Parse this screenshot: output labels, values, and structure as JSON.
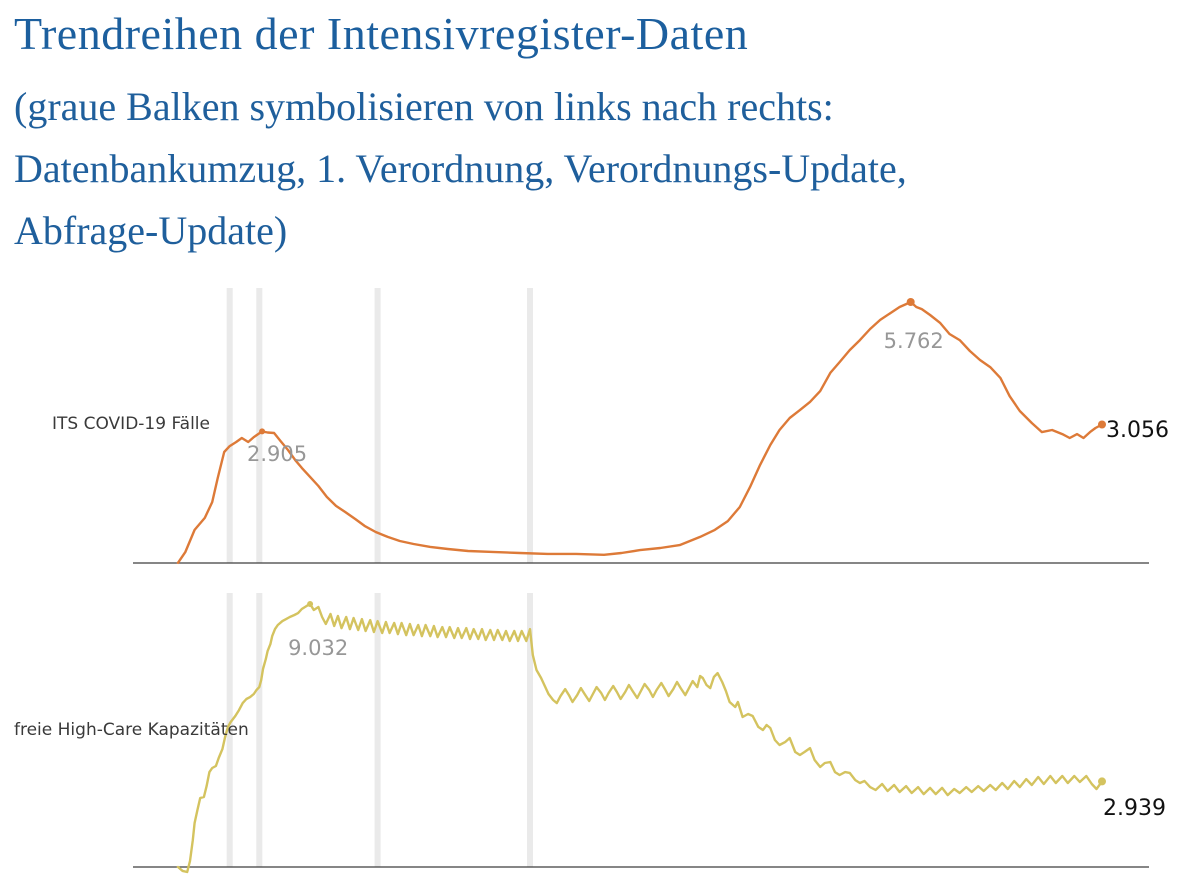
{
  "header": {
    "title": "Trendreihen der Intensivregister-Daten",
    "subtitle_lines": [
      "(graue Balken symbolisieren von links nach rechts:",
      "Datenbankumzug, 1. Verordnung, Verordnungs-Update,",
      "Abfrage-Update)"
    ]
  },
  "colors": {
    "title_blue": "#1c5f9e",
    "line_orange": "#dd7a38",
    "line_yellow": "#d4c35f",
    "event_bar_gray": "#eaeaea",
    "axis_gray": "#3f3f3f",
    "annotation_gray": "#979797",
    "end_label_dark": "#111111",
    "row_label_dark": "#3a3a3a"
  },
  "event_bars": {
    "names": [
      "Datenbankumzug",
      "1. Verordnung",
      "Verordnungs-Update",
      "Abfrage-Update"
    ],
    "t_positions": [
      0.056,
      0.088,
      0.216,
      0.381
    ]
  },
  "chart_data": [
    {
      "type": "line",
      "series_name": "ITS COVID-19 Fälle",
      "legend_position": "left-middle",
      "grid": false,
      "x_tick_labels": [],
      "ylim": [
        0,
        6070
      ],
      "annotations": [
        {
          "label": "2.905",
          "t": 0.091,
          "v": 2905
        },
        {
          "label": "5.762",
          "t": 0.793,
          "v": 5762
        }
      ],
      "end_label": "3.056",
      "end_value": 3056,
      "points": [
        [
          0,
          5
        ],
        [
          0.008,
          245
        ],
        [
          0.018,
          730
        ],
        [
          0.029,
          995
        ],
        [
          0.037,
          1345
        ],
        [
          0.043,
          1875
        ],
        [
          0.05,
          2450
        ],
        [
          0.056,
          2580
        ],
        [
          0.063,
          2670
        ],
        [
          0.069,
          2760
        ],
        [
          0.076,
          2670
        ],
        [
          0.082,
          2780
        ],
        [
          0.091,
          2905
        ],
        [
          0.097,
          2880
        ],
        [
          0.104,
          2870
        ],
        [
          0.111,
          2690
        ],
        [
          0.119,
          2495
        ],
        [
          0.127,
          2270
        ],
        [
          0.134,
          2100
        ],
        [
          0.143,
          1900
        ],
        [
          0.152,
          1700
        ],
        [
          0.161,
          1460
        ],
        [
          0.171,
          1260
        ],
        [
          0.181,
          1125
        ],
        [
          0.192,
          970
        ],
        [
          0.202,
          820
        ],
        [
          0.214,
          685
        ],
        [
          0.227,
          575
        ],
        [
          0.24,
          485
        ],
        [
          0.255,
          420
        ],
        [
          0.273,
          355
        ],
        [
          0.292,
          310
        ],
        [
          0.314,
          265
        ],
        [
          0.34,
          245
        ],
        [
          0.37,
          220
        ],
        [
          0.4,
          200
        ],
        [
          0.431,
          200
        ],
        [
          0.461,
          180
        ],
        [
          0.48,
          220
        ],
        [
          0.5,
          285
        ],
        [
          0.522,
          330
        ],
        [
          0.543,
          395
        ],
        [
          0.565,
          575
        ],
        [
          0.581,
          730
        ],
        [
          0.595,
          925
        ],
        [
          0.608,
          1235
        ],
        [
          0.619,
          1675
        ],
        [
          0.63,
          2165
        ],
        [
          0.641,
          2605
        ],
        [
          0.651,
          2935
        ],
        [
          0.662,
          3200
        ],
        [
          0.673,
          3375
        ],
        [
          0.684,
          3555
        ],
        [
          0.695,
          3795
        ],
        [
          0.706,
          4195
        ],
        [
          0.716,
          4435
        ],
        [
          0.727,
          4700
        ],
        [
          0.738,
          4920
        ],
        [
          0.749,
          5165
        ],
        [
          0.76,
          5365
        ],
        [
          0.771,
          5515
        ],
        [
          0.781,
          5650
        ],
        [
          0.788,
          5715
        ],
        [
          0.793,
          5762
        ],
        [
          0.799,
          5650
        ],
        [
          0.805,
          5605
        ],
        [
          0.814,
          5475
        ],
        [
          0.825,
          5295
        ],
        [
          0.835,
          5055
        ],
        [
          0.846,
          4920
        ],
        [
          0.857,
          4680
        ],
        [
          0.868,
          4480
        ],
        [
          0.879,
          4325
        ],
        [
          0.89,
          4085
        ],
        [
          0.9,
          3685
        ],
        [
          0.911,
          3355
        ],
        [
          0.924,
          3090
        ],
        [
          0.935,
          2890
        ],
        [
          0.946,
          2935
        ],
        [
          0.957,
          2845
        ],
        [
          0.965,
          2760
        ],
        [
          0.973,
          2845
        ],
        [
          0.98,
          2760
        ],
        [
          0.987,
          2890
        ],
        [
          0.993,
          2980
        ],
        [
          1,
          3056
        ]
      ]
    },
    {
      "type": "line",
      "series_name": "freie High-Care Kapazitäten",
      "legend_position": "left-middle",
      "grid": false,
      "x_tick_labels": [],
      "ylim": [
        0,
        9410
      ],
      "annotations": [
        {
          "label": "9.032",
          "t": 0.143,
          "v": 9032
        }
      ],
      "end_label": "2.939",
      "end_value": 2939,
      "points": [
        [
          0,
          0
        ],
        [
          0.005,
          -135
        ],
        [
          0.01,
          -170
        ],
        [
          0.013,
          205
        ],
        [
          0.016,
          925
        ],
        [
          0.018,
          1510
        ],
        [
          0.021,
          1955
        ],
        [
          0.024,
          2370
        ],
        [
          0.028,
          2405
        ],
        [
          0.031,
          2780
        ],
        [
          0.034,
          3260
        ],
        [
          0.037,
          3400
        ],
        [
          0.041,
          3470
        ],
        [
          0.044,
          3745
        ],
        [
          0.048,
          4050
        ],
        [
          0.051,
          4465
        ],
        [
          0.054,
          4810
        ],
        [
          0.057,
          4980
        ],
        [
          0.062,
          5185
        ],
        [
          0.066,
          5390
        ],
        [
          0.07,
          5630
        ],
        [
          0.074,
          5770
        ],
        [
          0.078,
          5835
        ],
        [
          0.082,
          5940
        ],
        [
          0.085,
          6080
        ],
        [
          0.088,
          6180
        ],
        [
          0.09,
          6420
        ],
        [
          0.092,
          6800
        ],
        [
          0.095,
          7140
        ],
        [
          0.097,
          7415
        ],
        [
          0.1,
          7655
        ],
        [
          0.102,
          7930
        ],
        [
          0.105,
          8170
        ],
        [
          0.108,
          8310
        ],
        [
          0.113,
          8445
        ],
        [
          0.117,
          8515
        ],
        [
          0.121,
          8585
        ],
        [
          0.126,
          8655
        ],
        [
          0.13,
          8720
        ],
        [
          0.134,
          8860
        ],
        [
          0.139,
          8960
        ],
        [
          0.143,
          9032
        ],
        [
          0.147,
          8825
        ],
        [
          0.152,
          8930
        ],
        [
          0.156,
          8585
        ],
        [
          0.16,
          8345
        ],
        [
          0.165,
          8690
        ],
        [
          0.169,
          8275
        ],
        [
          0.173,
          8620
        ],
        [
          0.177,
          8205
        ],
        [
          0.182,
          8585
        ],
        [
          0.186,
          8170
        ],
        [
          0.19,
          8550
        ],
        [
          0.195,
          8140
        ],
        [
          0.199,
          8515
        ],
        [
          0.203,
          8105
        ],
        [
          0.208,
          8480
        ],
        [
          0.212,
          8070
        ],
        [
          0.216,
          8445
        ],
        [
          0.221,
          8035
        ],
        [
          0.225,
          8415
        ],
        [
          0.229,
          8035
        ],
        [
          0.234,
          8380
        ],
        [
          0.238,
          8000
        ],
        [
          0.242,
          8380
        ],
        [
          0.247,
          7965
        ],
        [
          0.251,
          8345
        ],
        [
          0.255,
          7965
        ],
        [
          0.26,
          8310
        ],
        [
          0.264,
          7930
        ],
        [
          0.268,
          8310
        ],
        [
          0.273,
          7930
        ],
        [
          0.277,
          8275
        ],
        [
          0.281,
          7895
        ],
        [
          0.286,
          8240
        ],
        [
          0.29,
          7895
        ],
        [
          0.294,
          8240
        ],
        [
          0.299,
          7865
        ],
        [
          0.303,
          8205
        ],
        [
          0.307,
          7865
        ],
        [
          0.312,
          8205
        ],
        [
          0.316,
          7830
        ],
        [
          0.32,
          8170
        ],
        [
          0.325,
          7830
        ],
        [
          0.329,
          8170
        ],
        [
          0.333,
          7795
        ],
        [
          0.338,
          8140
        ],
        [
          0.342,
          7795
        ],
        [
          0.346,
          8140
        ],
        [
          0.351,
          7795
        ],
        [
          0.355,
          8105
        ],
        [
          0.359,
          7760
        ],
        [
          0.364,
          8105
        ],
        [
          0.368,
          7760
        ],
        [
          0.372,
          8105
        ],
        [
          0.377,
          7760
        ],
        [
          0.381,
          8170
        ],
        [
          0.384,
          7280
        ],
        [
          0.388,
          6765
        ],
        [
          0.393,
          6490
        ],
        [
          0.397,
          6215
        ],
        [
          0.401,
          5940
        ],
        [
          0.406,
          5735
        ],
        [
          0.41,
          5630
        ],
        [
          0.414,
          5870
        ],
        [
          0.419,
          6110
        ],
        [
          0.423,
          5905
        ],
        [
          0.427,
          5665
        ],
        [
          0.432,
          5905
        ],
        [
          0.436,
          6145
        ],
        [
          0.44,
          5940
        ],
        [
          0.445,
          5700
        ],
        [
          0.449,
          5940
        ],
        [
          0.453,
          6180
        ],
        [
          0.458,
          5975
        ],
        [
          0.462,
          5735
        ],
        [
          0.466,
          5975
        ],
        [
          0.471,
          6215
        ],
        [
          0.475,
          6010
        ],
        [
          0.479,
          5770
        ],
        [
          0.484,
          6010
        ],
        [
          0.488,
          6250
        ],
        [
          0.492,
          6045
        ],
        [
          0.497,
          5805
        ],
        [
          0.501,
          6045
        ],
        [
          0.505,
          6285
        ],
        [
          0.51,
          6080
        ],
        [
          0.514,
          5840
        ],
        [
          0.518,
          6080
        ],
        [
          0.523,
          6320
        ],
        [
          0.527,
          6110
        ],
        [
          0.531,
          5870
        ],
        [
          0.536,
          6110
        ],
        [
          0.54,
          6355
        ],
        [
          0.544,
          6145
        ],
        [
          0.549,
          5905
        ],
        [
          0.553,
          6145
        ],
        [
          0.557,
          6385
        ],
        [
          0.562,
          6180
        ],
        [
          0.565,
          6560
        ],
        [
          0.568,
          6490
        ],
        [
          0.572,
          6250
        ],
        [
          0.576,
          6145
        ],
        [
          0.58,
          6525
        ],
        [
          0.584,
          6660
        ],
        [
          0.589,
          6355
        ],
        [
          0.593,
          6045
        ],
        [
          0.597,
          5665
        ],
        [
          0.603,
          5495
        ],
        [
          0.606,
          5665
        ],
        [
          0.611,
          5150
        ],
        [
          0.617,
          5255
        ],
        [
          0.622,
          5185
        ],
        [
          0.628,
          4810
        ],
        [
          0.633,
          4705
        ],
        [
          0.637,
          4875
        ],
        [
          0.641,
          4775
        ],
        [
          0.646,
          4360
        ],
        [
          0.651,
          4190
        ],
        [
          0.657,
          4290
        ],
        [
          0.662,
          4430
        ],
        [
          0.668,
          3950
        ],
        [
          0.673,
          3845
        ],
        [
          0.678,
          3950
        ],
        [
          0.684,
          4085
        ],
        [
          0.689,
          3675
        ],
        [
          0.695,
          3435
        ],
        [
          0.7,
          3570
        ],
        [
          0.706,
          3605
        ],
        [
          0.711,
          3260
        ],
        [
          0.716,
          3160
        ],
        [
          0.722,
          3260
        ],
        [
          0.727,
          3230
        ],
        [
          0.733,
          2985
        ],
        [
          0.738,
          2885
        ],
        [
          0.743,
          2955
        ],
        [
          0.749,
          2745
        ],
        [
          0.755,
          2645
        ],
        [
          0.762,
          2850
        ],
        [
          0.768,
          2610
        ],
        [
          0.775,
          2815
        ],
        [
          0.781,
          2575
        ],
        [
          0.788,
          2780
        ],
        [
          0.794,
          2540
        ],
        [
          0.801,
          2745
        ],
        [
          0.807,
          2505
        ],
        [
          0.814,
          2715
        ],
        [
          0.82,
          2505
        ],
        [
          0.827,
          2715
        ],
        [
          0.833,
          2470
        ],
        [
          0.84,
          2680
        ],
        [
          0.846,
          2540
        ],
        [
          0.853,
          2745
        ],
        [
          0.859,
          2575
        ],
        [
          0.866,
          2780
        ],
        [
          0.872,
          2610
        ],
        [
          0.879,
          2815
        ],
        [
          0.885,
          2645
        ],
        [
          0.892,
          2885
        ],
        [
          0.898,
          2680
        ],
        [
          0.905,
          2955
        ],
        [
          0.911,
          2745
        ],
        [
          0.918,
          3020
        ],
        [
          0.924,
          2815
        ],
        [
          0.931,
          3090
        ],
        [
          0.937,
          2850
        ],
        [
          0.944,
          3125
        ],
        [
          0.95,
          2885
        ],
        [
          0.957,
          3125
        ],
        [
          0.963,
          2885
        ],
        [
          0.97,
          3125
        ],
        [
          0.976,
          2920
        ],
        [
          0.983,
          3125
        ],
        [
          0.989,
          2850
        ],
        [
          0.994,
          2680
        ],
        [
          1,
          2939
        ]
      ]
    }
  ]
}
